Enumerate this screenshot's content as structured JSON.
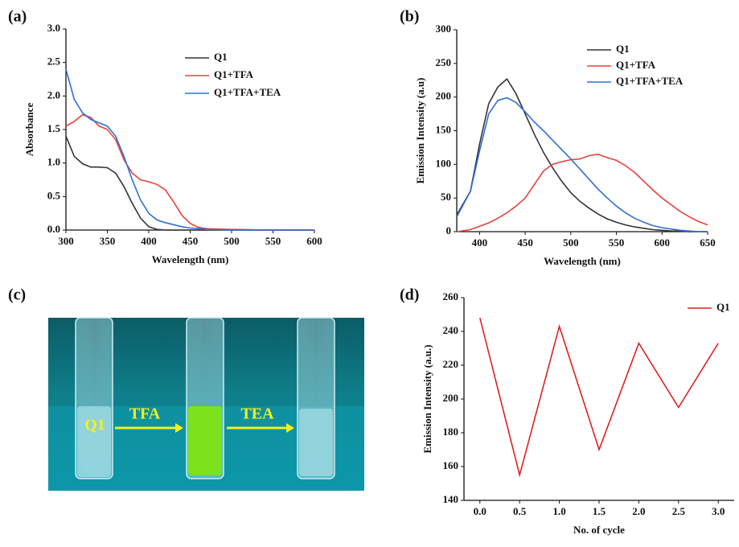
{
  "chart_data": [
    {
      "type": "line",
      "panel_label": "(a)",
      "x_label": "Wavelength (nm)",
      "y_label": "Absorbance",
      "x": [
        300,
        310,
        320,
        330,
        340,
        350,
        360,
        370,
        380,
        390,
        400,
        410,
        420,
        430,
        440,
        450,
        460,
        470,
        500,
        550,
        600
      ],
      "series": [
        {
          "name": "Q1",
          "color": "#333333",
          "values": [
            1.4,
            1.1,
            0.99,
            0.94,
            0.94,
            0.93,
            0.85,
            0.65,
            0.4,
            0.18,
            0.05,
            0.01,
            0,
            0,
            0,
            0,
            0,
            0,
            0,
            0,
            0
          ]
        },
        {
          "name": "Q1+TFA",
          "color": "#e8413e",
          "values": [
            1.55,
            1.62,
            1.72,
            1.68,
            1.55,
            1.5,
            1.35,
            1.05,
            0.85,
            0.75,
            0.72,
            0.68,
            0.6,
            0.42,
            0.22,
            0.1,
            0.04,
            0.02,
            0.01,
            0,
            0
          ]
        },
        {
          "name": "Q1+TFA+TEA",
          "color": "#2f6fd6",
          "values": [
            2.4,
            1.95,
            1.75,
            1.65,
            1.6,
            1.55,
            1.4,
            1.1,
            0.75,
            0.45,
            0.25,
            0.15,
            0.11,
            0.08,
            0.05,
            0.03,
            0.02,
            0.01,
            0,
            0,
            0
          ]
        }
      ],
      "xlim": [
        300,
        600
      ],
      "xticks": [
        300,
        350,
        400,
        450,
        500,
        550,
        600
      ],
      "ylim": [
        0,
        3
      ],
      "yticks": [
        {
          "value": 0,
          "label": "0.0"
        },
        {
          "value": 0.5,
          "label": "0.5"
        },
        {
          "value": 1,
          "label": "1.0"
        },
        {
          "value": 1.5,
          "label": "1.5"
        },
        {
          "value": 2,
          "label": "2.0"
        },
        {
          "value": 2.5,
          "label": "2.5"
        },
        {
          "value": 3,
          "label": "3.0"
        }
      ],
      "legend": "upper right"
    },
    {
      "type": "line",
      "panel_label": "(b)",
      "x_label": "Wavelength (nm)",
      "y_label": "Emission Intensity (a.u)",
      "x": [
        375,
        390,
        400,
        410,
        420,
        430,
        440,
        450,
        460,
        470,
        480,
        490,
        500,
        510,
        520,
        530,
        540,
        550,
        560,
        570,
        580,
        590,
        600,
        610,
        620,
        630,
        640,
        650
      ],
      "series": [
        {
          "name": "Q1",
          "color": "#333333",
          "values": [
            25,
            60,
            130,
            190,
            215,
            227,
            205,
            175,
            145,
            118,
            95,
            75,
            58,
            45,
            35,
            26,
            19,
            14,
            10,
            7,
            5,
            3,
            2,
            1,
            1,
            0,
            0,
            0
          ]
        },
        {
          "name": "Q1+TFA",
          "color": "#e8413e",
          "values": [
            0,
            3,
            8,
            13,
            20,
            28,
            38,
            50,
            70,
            90,
            100,
            104,
            107,
            108,
            113,
            115,
            110,
            106,
            98,
            88,
            75,
            62,
            50,
            40,
            30,
            22,
            15,
            10
          ]
        },
        {
          "name": "Q1+TFA+TEA",
          "color": "#2f6fd6",
          "values": [
            22,
            60,
            120,
            175,
            195,
            199,
            192,
            178,
            163,
            150,
            136,
            122,
            108,
            93,
            78,
            63,
            50,
            38,
            28,
            20,
            14,
            9,
            6,
            4,
            2,
            1,
            0,
            0
          ]
        }
      ],
      "xlim": [
        375,
        650
      ],
      "xticks": [
        400,
        450,
        500,
        550,
        600,
        650
      ],
      "ylim": [
        0,
        300
      ],
      "yticks": [
        0,
        50,
        100,
        150,
        200,
        250,
        300
      ],
      "legend": "upper right"
    },
    {
      "type": "line",
      "panel_label": "(d)",
      "x_label": "No. of cycle",
      "y_label": "Emission Intensity (a.u.)",
      "x": [
        0,
        0.5,
        1,
        1.5,
        2,
        2.5,
        3
      ],
      "series": [
        {
          "name": "Q1",
          "color": "#e02020",
          "values": [
            248,
            155,
            243,
            170,
            233,
            195,
            233
          ]
        }
      ],
      "xlim": [
        -0.2,
        3.2
      ],
      "xticks": [
        {
          "value": 0,
          "label": "0.0"
        },
        {
          "value": 0.5,
          "label": "0.5"
        },
        {
          "value": 1,
          "label": "1.0"
        },
        {
          "value": 1.5,
          "label": "1.5"
        },
        {
          "value": 2,
          "label": "2.0"
        },
        {
          "value": 2.5,
          "label": "2.5"
        },
        {
          "value": 3,
          "label": "3.0"
        }
      ],
      "ylim": [
        140,
        260
      ],
      "yticks": [
        140,
        160,
        180,
        200,
        220,
        240,
        260
      ],
      "legend": "upper right"
    }
  ],
  "photo": {
    "panel_label": "(c)",
    "labels": [
      "Q1",
      "TFA",
      "TEA"
    ]
  }
}
